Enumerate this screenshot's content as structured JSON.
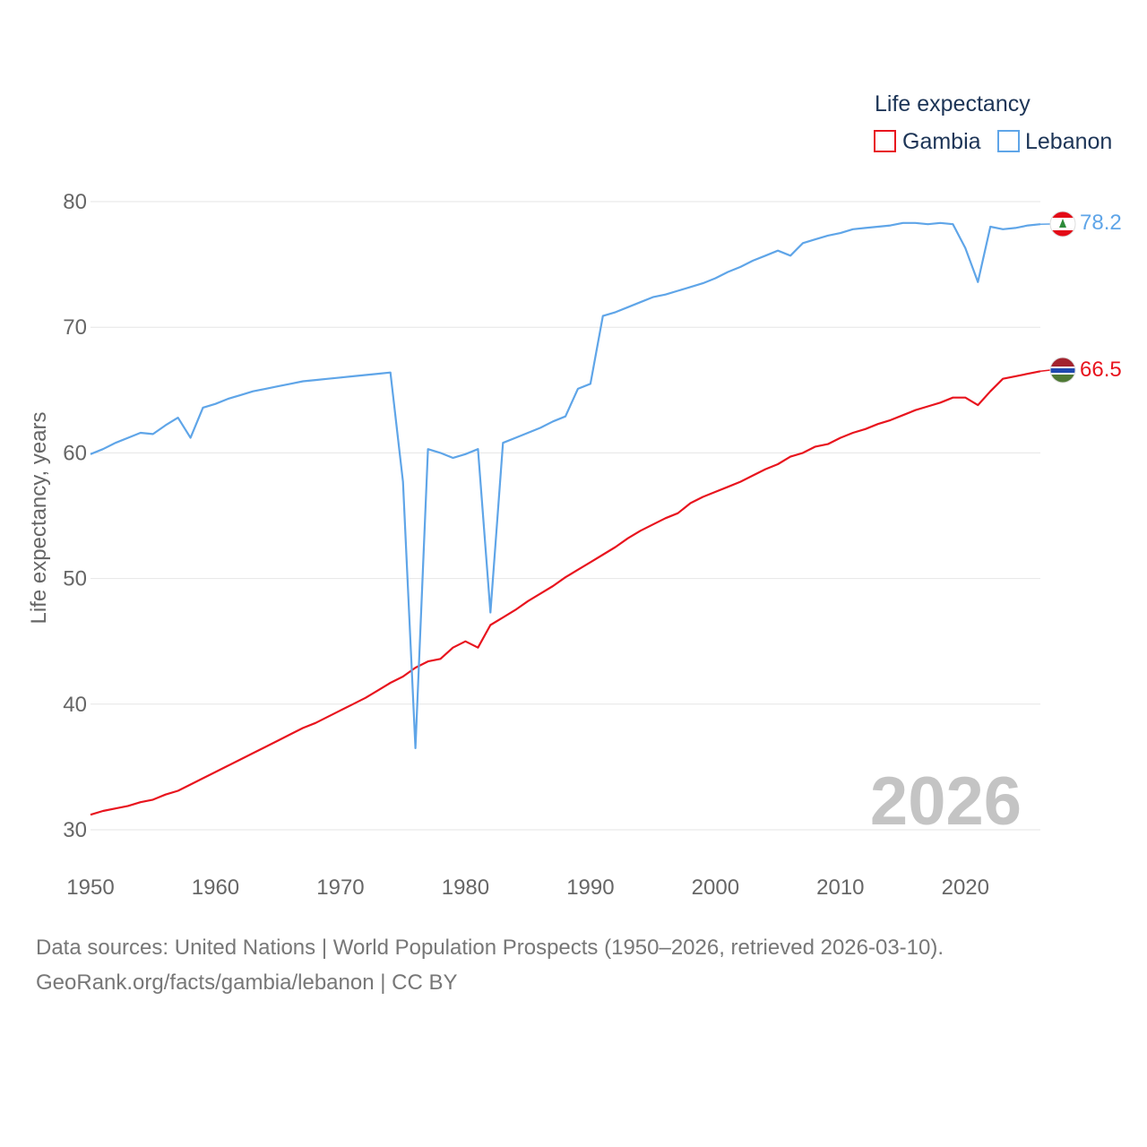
{
  "colors": {
    "gambia": "#e8141e",
    "lebanon": "#5fa5e8",
    "grid": "#e6e6e6",
    "tick": "#666666",
    "legend": "#1d3557"
  },
  "chart_data": {
    "type": "line",
    "title": "",
    "xlabel": "",
    "ylabel": "Life expectancy, years",
    "xlim": [
      1950,
      2026
    ],
    "ylim": [
      30,
      80
    ],
    "xticks": [
      1950,
      1960,
      1970,
      1980,
      1990,
      2000,
      2010,
      2020
    ],
    "yticks": [
      30,
      40,
      50,
      60,
      70,
      80
    ],
    "grid": true,
    "legend_title": "Life expectancy",
    "legend_position": "top-right",
    "year_watermark": "2026",
    "x": [
      1950,
      1951,
      1952,
      1953,
      1954,
      1955,
      1956,
      1957,
      1958,
      1959,
      1960,
      1961,
      1962,
      1963,
      1964,
      1965,
      1966,
      1967,
      1968,
      1969,
      1970,
      1971,
      1972,
      1973,
      1974,
      1975,
      1976,
      1977,
      1978,
      1979,
      1980,
      1981,
      1982,
      1983,
      1984,
      1985,
      1986,
      1987,
      1988,
      1989,
      1990,
      1991,
      1992,
      1993,
      1994,
      1995,
      1996,
      1997,
      1998,
      1999,
      2000,
      2001,
      2002,
      2003,
      2004,
      2005,
      2006,
      2007,
      2008,
      2009,
      2010,
      2011,
      2012,
      2013,
      2014,
      2015,
      2016,
      2017,
      2018,
      2019,
      2020,
      2021,
      2022,
      2023,
      2024,
      2025,
      2026
    ],
    "series": [
      {
        "name": "Gambia",
        "color_key": "gambia",
        "end_label": "66.5",
        "values": [
          31.2,
          31.5,
          31.7,
          31.9,
          32.2,
          32.4,
          32.8,
          33.1,
          33.6,
          34.1,
          34.6,
          35.1,
          35.6,
          36.1,
          36.6,
          37.1,
          37.6,
          38.1,
          38.5,
          39.0,
          39.5,
          40.0,
          40.5,
          41.1,
          41.7,
          42.2,
          42.9,
          43.4,
          43.6,
          44.5,
          45.0,
          44.5,
          46.3,
          46.9,
          47.5,
          48.2,
          48.8,
          49.4,
          50.1,
          50.7,
          51.3,
          51.9,
          52.5,
          53.2,
          53.8,
          54.3,
          54.8,
          55.2,
          56.0,
          56.5,
          56.9,
          57.3,
          57.7,
          58.2,
          58.7,
          59.1,
          59.7,
          60.0,
          60.5,
          60.7,
          61.2,
          61.6,
          61.9,
          62.3,
          62.6,
          63.0,
          63.4,
          63.7,
          64.0,
          64.4,
          64.4,
          63.8,
          64.9,
          65.9,
          66.1,
          66.3,
          66.5
        ]
      },
      {
        "name": "Lebanon",
        "color_key": "lebanon",
        "end_label": "78.2",
        "values": [
          59.9,
          60.3,
          60.8,
          61.2,
          61.6,
          61.5,
          62.2,
          62.8,
          61.2,
          63.6,
          63.9,
          64.3,
          64.6,
          64.9,
          65.1,
          65.3,
          65.5,
          65.7,
          65.8,
          65.9,
          66.0,
          66.1,
          66.2,
          66.3,
          66.4,
          57.7,
          36.5,
          60.3,
          60.0,
          59.6,
          59.9,
          60.3,
          47.3,
          60.8,
          61.2,
          61.6,
          62.0,
          62.5,
          62.9,
          65.1,
          65.5,
          70.9,
          71.2,
          71.6,
          72.0,
          72.4,
          72.6,
          72.9,
          73.2,
          73.5,
          73.9,
          74.4,
          74.8,
          75.3,
          75.7,
          76.1,
          75.7,
          76.7,
          77.0,
          77.3,
          77.5,
          77.8,
          77.9,
          78.0,
          78.1,
          78.3,
          78.3,
          78.2,
          78.3,
          78.2,
          76.3,
          73.6,
          78.0,
          77.8,
          77.9,
          78.1,
          78.2
        ]
      }
    ]
  },
  "footer": {
    "line1": "Data sources: United Nations | World Population Prospects (1950–2026, retrieved 2026-03-10).",
    "line2": "GeoRank.org/facts/gambia/lebanon | CC BY"
  }
}
